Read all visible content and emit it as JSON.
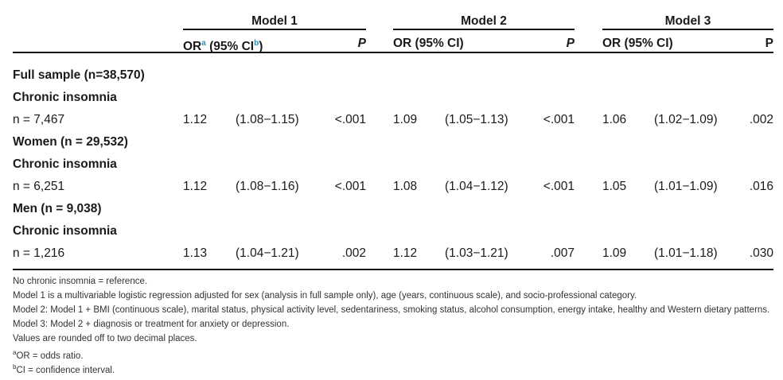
{
  "models": [
    {
      "title": "Model 1",
      "or_label": "OR",
      "or_sup": "a",
      "ci_label": "(95% CI",
      "ci_sup": "b",
      "ci_close": ")",
      "p_label": "P",
      "p_italic": true
    },
    {
      "title": "Model 2",
      "or_label": "OR (95% CI)",
      "p_label": "P",
      "p_italic": true
    },
    {
      "title": "Model 3",
      "or_label": "OR (95% CI)",
      "p_label": "P",
      "p_italic": false
    }
  ],
  "rows": [
    {
      "label": "Full sample (n=38,570)",
      "bold": true
    },
    {
      "label": "Chronic insomnia",
      "bold": true
    },
    {
      "label": "n = 7,467",
      "values": [
        [
          "1.12",
          "(1.08−1.15)",
          "<.001"
        ],
        [
          "1.09",
          "(1.05−1.13)",
          "<.001"
        ],
        [
          "1.06",
          "(1.02−1.09)",
          ".002"
        ]
      ]
    },
    {
      "label": "Women (n = 29,532)",
      "bold": true
    },
    {
      "label": "Chronic insomnia",
      "bold": true
    },
    {
      "label": "n = 6,251",
      "values": [
        [
          "1.12",
          "(1.08−1.16)",
          "<.001"
        ],
        [
          "1.08",
          "(1.04−1.12)",
          "<.001"
        ],
        [
          "1.05",
          "(1.01−1.09)",
          ".016"
        ]
      ]
    },
    {
      "label": "Men (n = 9,038)",
      "bold": true
    },
    {
      "label": "Chronic insomnia",
      "bold": true
    },
    {
      "label": "n = 1,216",
      "values": [
        [
          "1.13",
          "(1.04−1.21)",
          ".002"
        ],
        [
          "1.12",
          "(1.03−1.21)",
          ".007"
        ],
        [
          "1.09",
          "(1.01−1.18)",
          ".030"
        ]
      ]
    }
  ],
  "footnotes": [
    "No chronic insomnia = reference.",
    "Model 1 is a multivariable logistic regression adjusted for sex (analysis in full sample only), age (years, continuous scale), and socio-professional category.",
    "Model 2: Model 1 + BMI (continuous scale), marital status, physical activity level, sedentariness, smoking status, alcohol consumption, energy intake, healthy and Western dietary patterns.",
    "Model 3: Model 2 + diagnosis or treatment for anxiety or depression.",
    "Values are rounded off to two decimal places."
  ],
  "sup_notes": [
    {
      "sup": "a",
      "text": "OR = odds ratio."
    },
    {
      "sup": "b",
      "text": "CI = confidence interval."
    }
  ]
}
